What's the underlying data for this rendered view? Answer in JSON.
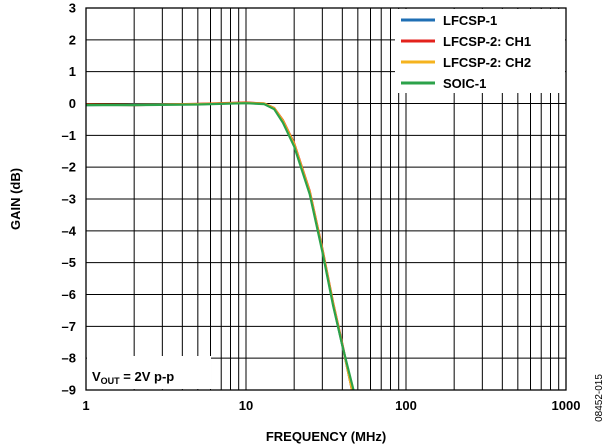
{
  "chart_data": {
    "type": "line",
    "xlabel": "FREQUENCY (MHz)",
    "ylabel": "GAIN (dB)",
    "x_scale": "log",
    "xlim": [
      1,
      1000
    ],
    "ylim": [
      -9,
      3
    ],
    "x_ticks": [
      1,
      10,
      100,
      1000
    ],
    "y_ticks": [
      3,
      2,
      1,
      0,
      -1,
      -2,
      -3,
      -4,
      -5,
      -6,
      -7,
      -8,
      -9
    ],
    "x_tick_labels": [
      "1",
      "10",
      "100",
      "1000"
    ],
    "y_tick_labels": [
      "3",
      "2",
      "1",
      "0",
      "–1",
      "–2",
      "–3",
      "–4",
      "–5",
      "–6",
      "–7",
      "–8",
      "–9"
    ],
    "grid": true,
    "legend_position": "top-right",
    "annotation": {
      "main": "V",
      "sub": "OUT",
      "rest": " = 2V p-p"
    },
    "figure_id": "08452-015",
    "series": [
      {
        "name": "LFCSP-1",
        "color": "#1f6fb4",
        "x": [
          1,
          2,
          5,
          10,
          13,
          15,
          17,
          20,
          25,
          30,
          35,
          40,
          46
        ],
        "y": [
          -0.05,
          -0.03,
          -0.02,
          0.02,
          0.0,
          -0.15,
          -0.55,
          -1.3,
          -2.8,
          -4.6,
          -6.3,
          -7.6,
          -9.0
        ]
      },
      {
        "name": "LFCSP-2: CH1",
        "color": "#e3221c",
        "x": [
          1,
          2,
          5,
          10,
          13,
          15,
          17,
          20,
          25,
          30,
          35,
          40,
          46
        ],
        "y": [
          -0.03,
          -0.05,
          -0.01,
          0.03,
          0.0,
          -0.14,
          -0.52,
          -1.25,
          -2.75,
          -4.55,
          -6.25,
          -7.55,
          -9.0
        ]
      },
      {
        "name": "LFCSP-2: CH2",
        "color": "#f5b31e",
        "x": [
          1,
          2,
          5,
          10,
          13,
          15,
          17,
          20,
          25,
          30,
          35,
          40,
          46
        ],
        "y": [
          -0.04,
          -0.04,
          -0.02,
          0.02,
          0.0,
          -0.15,
          -0.54,
          -1.28,
          -2.78,
          -4.58,
          -6.28,
          -7.58,
          -9.0
        ]
      },
      {
        "name": "SOIC-1",
        "color": "#2ca24a",
        "x": [
          1,
          2,
          5,
          10,
          13,
          15,
          17,
          20,
          25,
          30,
          35,
          40,
          47
        ],
        "y": [
          -0.05,
          -0.05,
          -0.03,
          0.01,
          -0.02,
          -0.18,
          -0.6,
          -1.35,
          -2.85,
          -4.65,
          -6.35,
          -7.6,
          -9.0
        ]
      }
    ]
  }
}
